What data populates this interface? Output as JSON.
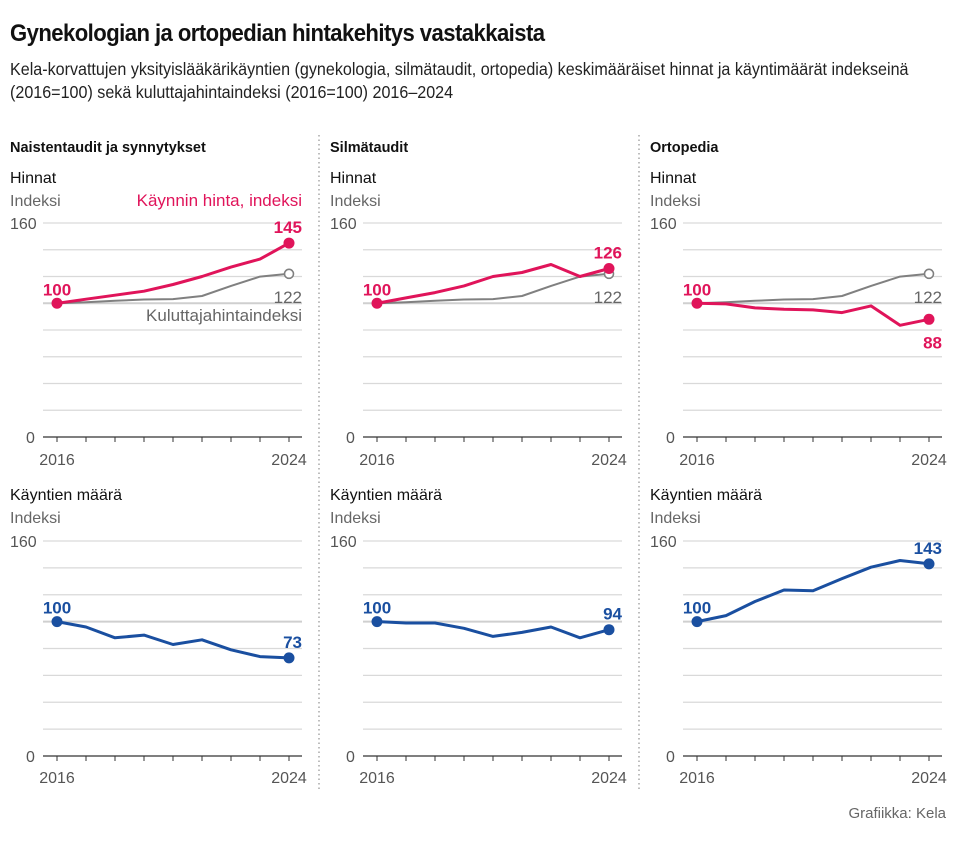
{
  "title": "Gynekologian ja ortopedian hintakehitys vastakkaista",
  "subtitle": "Kela-korvattujen yksityislääkärikäyntien (gynekologia, silmätaudit, ortopedia) keskimääräiset hinnat ja käyntimäärät indekseinä (2016=100) sekä kuluttajahintaindeksi (2016=100) 2016–2024",
  "credit": "Grafiikka: Kela",
  "colors": {
    "price": "#e0145a",
    "cpi": "#808080",
    "visits": "#1a4fa0",
    "grid": "#d9d9d9",
    "axis": "#333333"
  },
  "chart_data": [
    {
      "type": "line",
      "panel": "Naistentaudit ja synnytykset",
      "section": "Hinnat",
      "ylabel": "Indeksi",
      "x": [
        2016,
        2017,
        2018,
        2019,
        2020,
        2021,
        2022,
        2023,
        2024
      ],
      "xtick_labels": [
        "2016",
        "2024"
      ],
      "ylim": [
        0,
        160
      ],
      "ytick_labels": [
        "0",
        "160"
      ],
      "grid_step": 20,
      "series": [
        {
          "name": "Käynnin hinta, indeksi",
          "key": "price",
          "values": [
            100,
            103,
            106,
            109,
            114,
            120,
            127,
            133,
            145
          ],
          "start_label": "100",
          "end_label": "145"
        },
        {
          "name": "Kuluttajahintaindeksi",
          "key": "cpi",
          "values": [
            100,
            100.7,
            101.8,
            102.8,
            103.1,
            105.4,
            113.0,
            119.9,
            122
          ],
          "end_label": "122"
        }
      ],
      "annotations": [
        "Käynnin hinta, indeksi",
        "Kuluttajahintaindeksi"
      ]
    },
    {
      "type": "line",
      "panel": "Silmätaudit",
      "section": "Hinnat",
      "ylabel": "Indeksi",
      "x": [
        2016,
        2017,
        2018,
        2019,
        2020,
        2021,
        2022,
        2023,
        2024
      ],
      "xtick_labels": [
        "2016",
        "2024"
      ],
      "ylim": [
        0,
        160
      ],
      "ytick_labels": [
        "0",
        "160"
      ],
      "grid_step": 20,
      "series": [
        {
          "name": "Käynnin hinta, indeksi",
          "key": "price",
          "values": [
            100,
            104,
            108,
            113,
            120,
            123,
            129,
            120,
            126
          ],
          "start_label": "100",
          "end_label": "126"
        },
        {
          "name": "Kuluttajahintaindeksi",
          "key": "cpi",
          "values": [
            100,
            100.7,
            101.8,
            102.8,
            103.1,
            105.4,
            113.0,
            119.9,
            122
          ],
          "end_label": "122"
        }
      ]
    },
    {
      "type": "line",
      "panel": "Ortopedia",
      "section": "Hinnat",
      "ylabel": "Indeksi",
      "x": [
        2016,
        2017,
        2018,
        2019,
        2020,
        2021,
        2022,
        2023,
        2024
      ],
      "xtick_labels": [
        "2016",
        "2024"
      ],
      "ylim": [
        0,
        160
      ],
      "ytick_labels": [
        "0",
        "160"
      ],
      "grid_step": 20,
      "series": [
        {
          "name": "Käynnin hinta, indeksi",
          "key": "price",
          "values": [
            100,
            99.5,
            96.5,
            95.5,
            95,
            93,
            98,
            83.5,
            88
          ],
          "start_label": "100",
          "end_label": "88"
        },
        {
          "name": "Kuluttajahintaindeksi",
          "key": "cpi",
          "values": [
            100,
            100.7,
            101.8,
            102.8,
            103.1,
            105.4,
            113.0,
            119.9,
            122
          ],
          "end_label": "122"
        }
      ]
    },
    {
      "type": "line",
      "panel": "Naistentaudit ja synnytykset",
      "section": "Käyntien määrä",
      "ylabel": "Indeksi",
      "x": [
        2016,
        2017,
        2018,
        2019,
        2020,
        2021,
        2022,
        2023,
        2024
      ],
      "xtick_labels": [
        "2016",
        "2024"
      ],
      "ylim": [
        0,
        160
      ],
      "ytick_labels": [
        "0",
        "160"
      ],
      "grid_step": 20,
      "series": [
        {
          "name": "Käyntien määrä, indeksi",
          "key": "visits",
          "values": [
            100,
            96,
            88,
            90,
            83,
            86.5,
            79,
            74,
            73
          ],
          "start_label": "100",
          "end_label": "73"
        }
      ]
    },
    {
      "type": "line",
      "panel": "Silmätaudit",
      "section": "Käyntien määrä",
      "ylabel": "Indeksi",
      "x": [
        2016,
        2017,
        2018,
        2019,
        2020,
        2021,
        2022,
        2023,
        2024
      ],
      "xtick_labels": [
        "2016",
        "2024"
      ],
      "ylim": [
        0,
        160
      ],
      "ytick_labels": [
        "0",
        "160"
      ],
      "grid_step": 20,
      "series": [
        {
          "name": "Käyntien määrä, indeksi",
          "key": "visits",
          "values": [
            100,
            99,
            99,
            95,
            89,
            92,
            96,
            88,
            94
          ],
          "start_label": "100",
          "end_label": "94"
        }
      ]
    },
    {
      "type": "line",
      "panel": "Ortopedia",
      "section": "Käyntien määrä",
      "ylabel": "Indeksi",
      "x": [
        2016,
        2017,
        2018,
        2019,
        2020,
        2021,
        2022,
        2023,
        2024
      ],
      "xtick_labels": [
        "2016",
        "2024"
      ],
      "ylim": [
        0,
        160
      ],
      "ytick_labels": [
        "0",
        "160"
      ],
      "grid_step": 20,
      "series": [
        {
          "name": "Käyntien määrä, indeksi",
          "key": "visits",
          "values": [
            100,
            104.5,
            115,
            123.5,
            123,
            132,
            140.5,
            145.5,
            143
          ],
          "start_label": "100",
          "end_label": "143"
        }
      ]
    }
  ]
}
